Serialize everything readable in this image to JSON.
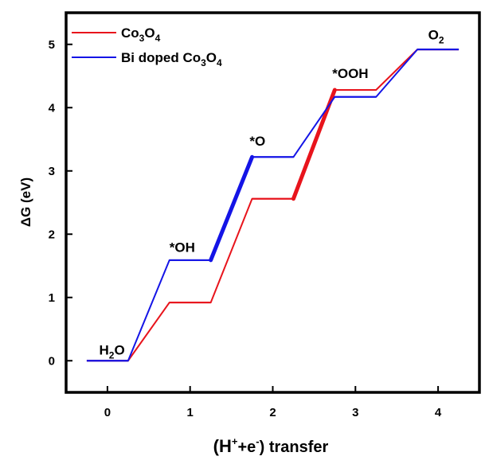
{
  "chart_data": {
    "type": "line",
    "xlabel_main": "(H",
    "xlabel_sup1": "+",
    "xlabel_mid": "+e",
    "xlabel_sup2": "-",
    "xlabel_end": ") transfer",
    "ylabel": "ΔG (eV)",
    "xlim": [
      -0.5,
      4.5
    ],
    "ylim": [
      -0.5,
      5.5
    ],
    "x_ticks": [
      0,
      1,
      2,
      3,
      4
    ],
    "y_ticks": [
      0,
      1,
      2,
      3,
      4,
      5
    ],
    "step_half_width": 0.25,
    "series": [
      {
        "name": "Co3O4",
        "legend_parts": [
          "Co",
          "3",
          "O",
          "4"
        ],
        "color": "#e8141c",
        "x": [
          0,
          1,
          2,
          3,
          4
        ],
        "y": [
          0.0,
          0.92,
          2.56,
          4.28,
          4.92
        ],
        "highlight_segment": 2
      },
      {
        "name": "Bi doped Co3O4",
        "legend_parts": [
          "Bi doped Co",
          "3",
          "O",
          "4"
        ],
        "color": "#1414e6",
        "x": [
          0,
          1,
          2,
          3,
          4
        ],
        "y": [
          0.0,
          1.59,
          3.22,
          4.17,
          4.92
        ],
        "highlight_segment": 1
      }
    ],
    "annotations": [
      {
        "id": "h2o",
        "parts": [
          "H",
          "2",
          "O"
        ],
        "x": -0.1,
        "y": 0.1
      },
      {
        "id": "oh",
        "parts": [
          "*OH",
          "",
          ""
        ],
        "x": 0.75,
        "y": 1.72
      },
      {
        "id": "o",
        "parts": [
          "*O",
          "",
          ""
        ],
        "x": 1.72,
        "y": 3.4
      },
      {
        "id": "ooh",
        "parts": [
          "*OOH",
          "",
          ""
        ],
        "x": 2.72,
        "y": 4.47
      },
      {
        "id": "o2",
        "parts": [
          "O",
          "2",
          ""
        ],
        "x": 3.88,
        "y": 5.08
      }
    ],
    "legend_position": "top-left",
    "grid": false
  }
}
